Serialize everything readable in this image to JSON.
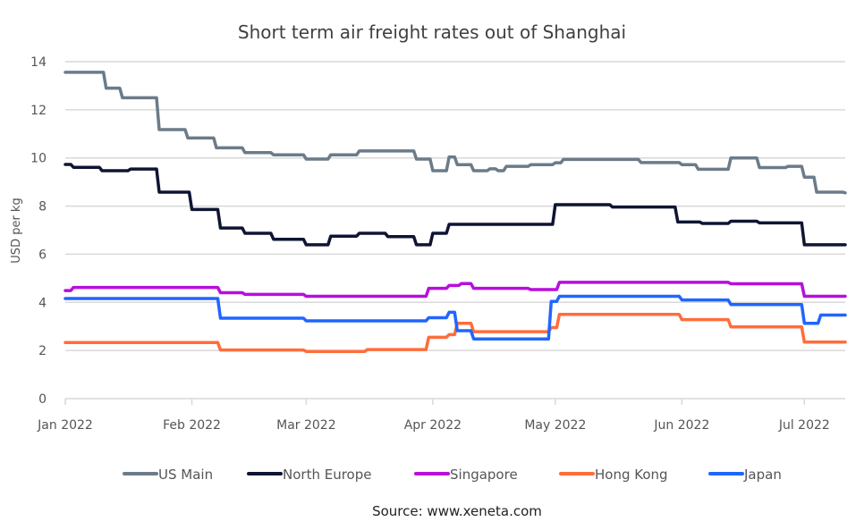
{
  "chart_data": {
    "type": "line",
    "title": "Short term air freight rates out of Shanghai",
    "xlabel": "",
    "ylabel": "USD per kg",
    "ylim": [
      0,
      14
    ],
    "xlim": [
      "2022-01-01",
      "2022-07-11"
    ],
    "yticks": [
      0,
      2,
      4,
      6,
      8,
      10,
      12,
      14
    ],
    "xticks": [
      {
        "date": "2022-01-01",
        "label": "Jan 2022"
      },
      {
        "date": "2022-02-01",
        "label": "Feb 2022"
      },
      {
        "date": "2022-03-01",
        "label": "Mar 2022"
      },
      {
        "date": "2022-04-01",
        "label": "Apr 2022"
      },
      {
        "date": "2022-05-01",
        "label": "May 2022"
      },
      {
        "date": "2022-06-01",
        "label": "Jun 2022"
      },
      {
        "date": "2022-07-01",
        "label": "Jul 2022"
      }
    ],
    "grid": "horizontal",
    "legend_position": "bottom",
    "source": "Source: www.xeneta.com",
    "series": [
      {
        "name": "US Main",
        "color": "#6b7b89",
        "points": [
          [
            "2022-01-01",
            13.56
          ],
          [
            "2022-01-11",
            12.9
          ],
          [
            "2022-01-15",
            12.5
          ],
          [
            "2022-01-24",
            11.18
          ],
          [
            "2022-01-31",
            10.83
          ],
          [
            "2022-02-07",
            10.42
          ],
          [
            "2022-02-14",
            10.22
          ],
          [
            "2022-02-21",
            10.13
          ],
          [
            "2022-03-01",
            9.95
          ],
          [
            "2022-03-07",
            10.13
          ],
          [
            "2022-03-14",
            10.29
          ],
          [
            "2022-03-28",
            9.95
          ],
          [
            "2022-04-01",
            9.47
          ],
          [
            "2022-04-05",
            10.04
          ],
          [
            "2022-04-07",
            9.72
          ],
          [
            "2022-04-11",
            9.47
          ],
          [
            "2022-04-15",
            9.55
          ],
          [
            "2022-04-17",
            9.47
          ],
          [
            "2022-04-19",
            9.65
          ],
          [
            "2022-04-25",
            9.72
          ],
          [
            "2022-05-01",
            9.8
          ],
          [
            "2022-05-03",
            9.94
          ],
          [
            "2022-05-22",
            9.81
          ],
          [
            "2022-06-01",
            9.72
          ],
          [
            "2022-06-05",
            9.53
          ],
          [
            "2022-06-13",
            10.0
          ],
          [
            "2022-06-20",
            9.6
          ],
          [
            "2022-06-27",
            9.65
          ],
          [
            "2022-07-01",
            9.2
          ],
          [
            "2022-07-04",
            8.58
          ],
          [
            "2022-07-11",
            8.55
          ]
        ]
      },
      {
        "name": "North Europe",
        "color": "#0e1533",
        "points": [
          [
            "2022-01-01",
            9.73
          ],
          [
            "2022-01-03",
            9.61
          ],
          [
            "2022-01-10",
            9.47
          ],
          [
            "2022-01-17",
            9.54
          ],
          [
            "2022-01-24",
            8.58
          ],
          [
            "2022-02-01",
            7.86
          ],
          [
            "2022-02-08",
            7.09
          ],
          [
            "2022-02-14",
            6.87
          ],
          [
            "2022-02-21",
            6.62
          ],
          [
            "2022-03-01",
            6.39
          ],
          [
            "2022-03-07",
            6.75
          ],
          [
            "2022-03-14",
            6.87
          ],
          [
            "2022-03-21",
            6.73
          ],
          [
            "2022-03-28",
            6.39
          ],
          [
            "2022-04-01",
            6.87
          ],
          [
            "2022-04-05",
            7.24
          ],
          [
            "2022-05-01",
            8.06
          ],
          [
            "2022-05-15",
            7.96
          ],
          [
            "2022-05-31",
            7.34
          ],
          [
            "2022-06-06",
            7.28
          ],
          [
            "2022-06-13",
            7.37
          ],
          [
            "2022-06-20",
            7.3
          ],
          [
            "2022-07-01",
            6.39
          ],
          [
            "2022-07-11",
            6.39
          ]
        ]
      },
      {
        "name": "Singapore",
        "color": "#b70fdc",
        "points": [
          [
            "2022-01-01",
            4.49
          ],
          [
            "2022-01-03",
            4.62
          ],
          [
            "2022-02-08",
            4.4
          ],
          [
            "2022-02-14",
            4.33
          ],
          [
            "2022-03-01",
            4.25
          ],
          [
            "2022-03-31",
            4.58
          ],
          [
            "2022-04-05",
            4.7
          ],
          [
            "2022-04-08",
            4.78
          ],
          [
            "2022-04-11",
            4.58
          ],
          [
            "2022-04-25",
            4.53
          ],
          [
            "2022-05-02",
            4.83
          ],
          [
            "2022-06-13",
            4.77
          ],
          [
            "2022-07-01",
            4.25
          ],
          [
            "2022-07-11",
            4.25
          ]
        ]
      },
      {
        "name": "Hong Kong",
        "color": "#ff6d3b",
        "points": [
          [
            "2022-01-01",
            2.33
          ],
          [
            "2022-02-08",
            2.02
          ],
          [
            "2022-03-01",
            1.96
          ],
          [
            "2022-03-16",
            2.04
          ],
          [
            "2022-03-31",
            2.55
          ],
          [
            "2022-04-05",
            2.66
          ],
          [
            "2022-04-07",
            3.13
          ],
          [
            "2022-04-11",
            2.78
          ],
          [
            "2022-04-30",
            2.95
          ],
          [
            "2022-05-02",
            3.5
          ],
          [
            "2022-06-01",
            3.28
          ],
          [
            "2022-06-13",
            2.98
          ],
          [
            "2022-07-01",
            2.35
          ],
          [
            "2022-07-11",
            2.35
          ]
        ]
      },
      {
        "name": "Japan",
        "color": "#1f66ff",
        "points": [
          [
            "2022-01-01",
            4.16
          ],
          [
            "2022-02-08",
            3.34
          ],
          [
            "2022-03-01",
            3.23
          ],
          [
            "2022-03-31",
            3.36
          ],
          [
            "2022-04-05",
            3.59
          ],
          [
            "2022-04-07",
            2.82
          ],
          [
            "2022-04-11",
            2.48
          ],
          [
            "2022-04-30",
            4.04
          ],
          [
            "2022-05-02",
            4.25
          ],
          [
            "2022-06-01",
            4.1
          ],
          [
            "2022-06-13",
            3.91
          ],
          [
            "2022-07-01",
            3.13
          ],
          [
            "2022-07-05",
            3.47
          ],
          [
            "2022-07-11",
            3.47
          ]
        ]
      }
    ]
  }
}
